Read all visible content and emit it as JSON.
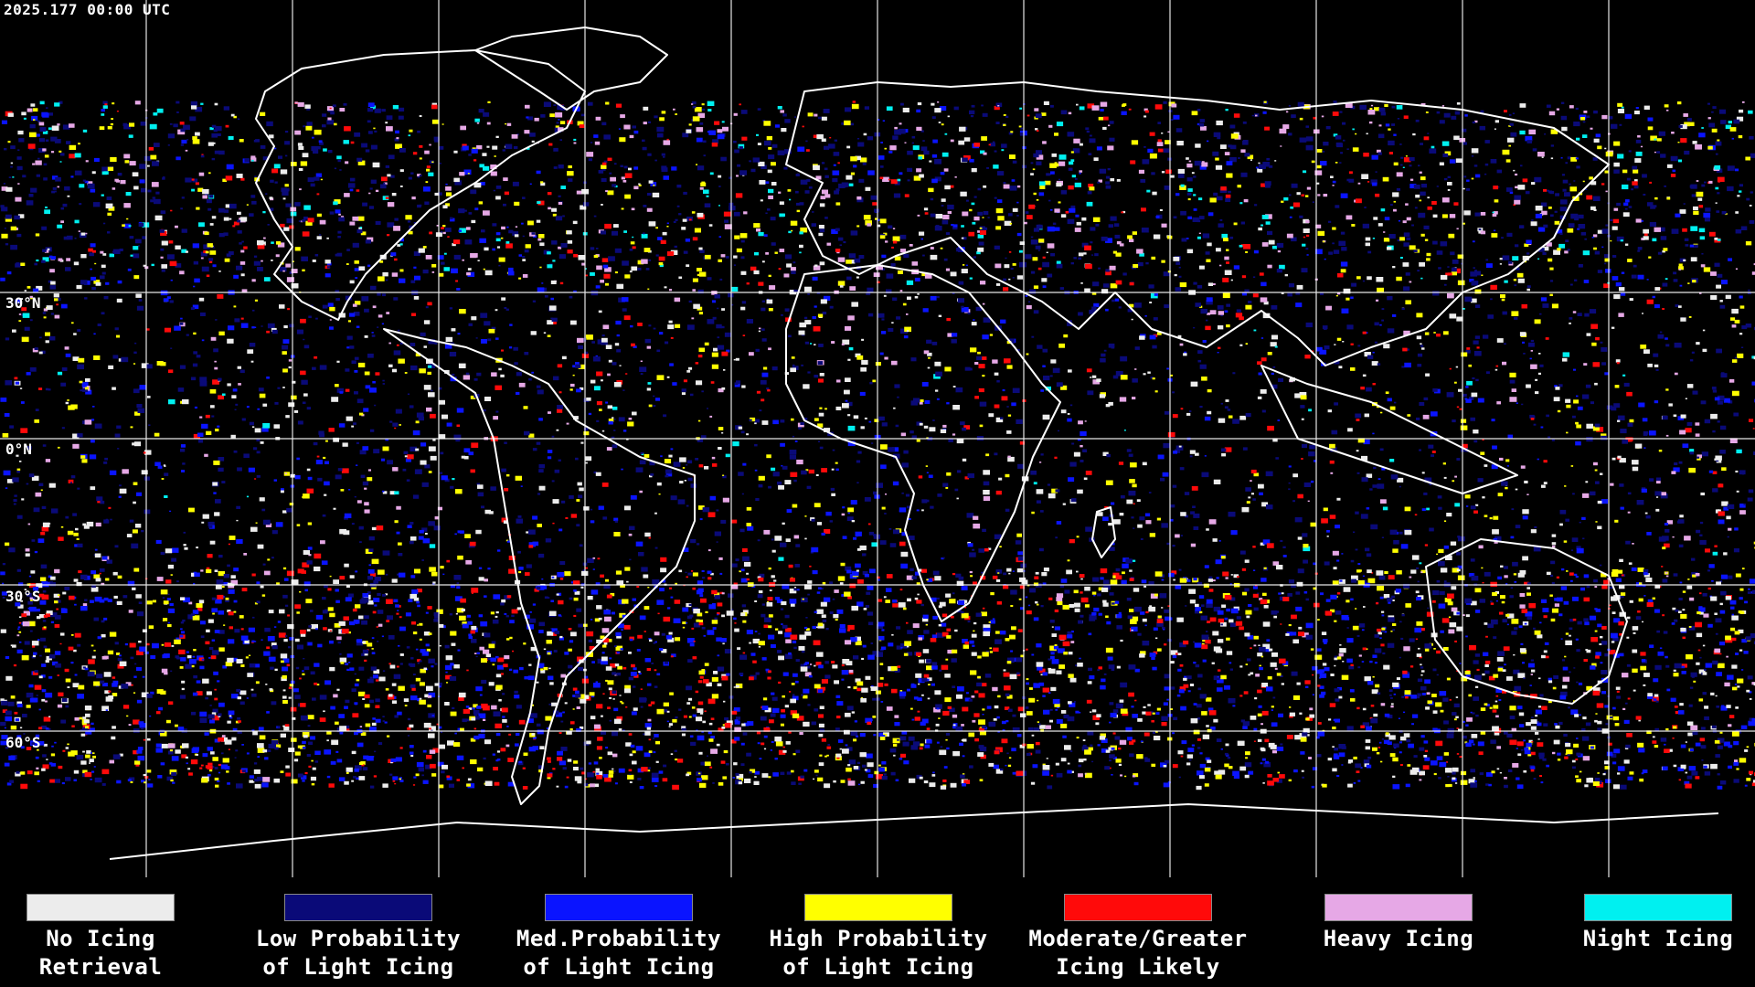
{
  "timestamp": "2025.177 00:00 UTC",
  "lat_labels": [
    "30°N",
    "0°N",
    "30°S",
    "60°S"
  ],
  "legend": [
    {
      "line1": "No Icing",
      "line2": "Retrieval",
      "color": "#ececec"
    },
    {
      "line1": "Low Probability",
      "line2": "of Light Icing",
      "color": "#0a0a78"
    },
    {
      "line1": "Med.Probability",
      "line2": "of Light Icing",
      "color": "#0a14ff"
    },
    {
      "line1": "High Probability",
      "line2": "of Light Icing",
      "color": "#ffff00"
    },
    {
      "line1": "Moderate/Greater",
      "line2": "Icing Likely",
      "color": "#ff0a0a"
    },
    {
      "line1": "Heavy Icing",
      "line2": "",
      "color": "#e6a8e6"
    },
    {
      "line1": "Night Icing",
      "line2": "",
      "color": "#00f0f0"
    }
  ]
}
